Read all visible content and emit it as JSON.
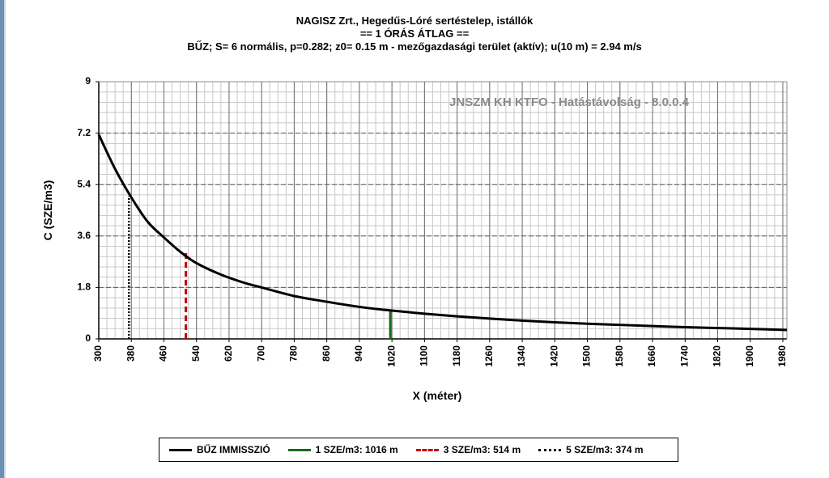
{
  "title": {
    "line1": "NAGISZ Zrt., Hegedűs-Lóré sertéstelep, istállók",
    "line2": "== 1 ÓRÁS ÁTLAG ==",
    "line3": "BŰZ; S= 6 normális, p=0.282; z0= 0.15 m - mezőgazdasági terület (aktív); u(10 m) = 2.94 m/s"
  },
  "watermark": "JNSZM KH KTFO - Hatástávolság  - 8.0.0.4",
  "chart_data": {
    "type": "line",
    "xlabel": "X (méter)",
    "ylabel": "C (SZE/m3)",
    "xlim": [
      300,
      1990
    ],
    "ylim": [
      0,
      9
    ],
    "x_ticks": [
      300,
      380,
      460,
      540,
      620,
      700,
      780,
      860,
      940,
      1020,
      1100,
      1180,
      1260,
      1340,
      1420,
      1500,
      1580,
      1660,
      1740,
      1820,
      1900,
      1980
    ],
    "y_ticks": [
      "0",
      "1.8",
      "3.6",
      "5.4",
      "7.2",
      "9"
    ],
    "grid": "on (major and minor)",
    "legend_placement": "bottom",
    "series": [
      {
        "name": "BŰZ IMMISSZIÓ",
        "color": "#000000",
        "x": [
          300,
          340,
          380,
          420,
          460,
          500,
          540,
          600,
          660,
          700,
          780,
          860,
          940,
          1020,
          1100,
          1180,
          1260,
          1340,
          1420,
          1500,
          1580,
          1660,
          1740,
          1820,
          1900,
          1990
        ],
        "y": [
          7.15,
          5.95,
          4.95,
          4.1,
          3.55,
          3.05,
          2.65,
          2.25,
          1.95,
          1.8,
          1.5,
          1.3,
          1.12,
          0.99,
          0.88,
          0.79,
          0.71,
          0.64,
          0.58,
          0.53,
          0.49,
          0.45,
          0.41,
          0.38,
          0.35,
          0.31
        ]
      }
    ],
    "markers": [
      {
        "name": "1 SZE/m3: 1016 m",
        "x": 1016,
        "y": 1,
        "color": "#1a6b1a",
        "style": "solid"
      },
      {
        "name": "3 SZE/m3: 514 m",
        "x": 514,
        "y": 3,
        "color": "#c00000",
        "style": "dashed"
      },
      {
        "name": "5 SZE/m3: 374 m",
        "x": 374,
        "y": 5,
        "color": "#000000",
        "style": "dotted"
      }
    ]
  }
}
